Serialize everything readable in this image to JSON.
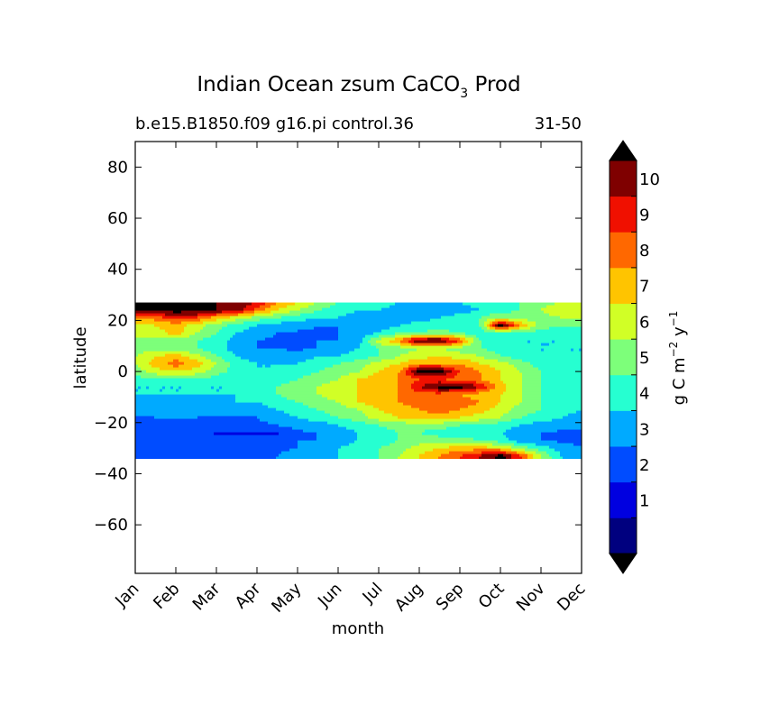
{
  "chart_data": {
    "type": "heatmap",
    "subtype": "filled-contour",
    "title_main": "Indian Ocean zsum CaCO",
    "title_sub": "3",
    "title_suffix": " Prod",
    "subtitle_left": "b.e15.B1850.f09 g16.pi control.36",
    "subtitle_right": "31-50",
    "xlabel": "month",
    "ylabel": "latitude",
    "x_tick_labels": [
      "Jan",
      "Feb",
      "Mar",
      "Apr",
      "May",
      "Jun",
      "Jul",
      "Aug",
      "Sep",
      "Oct",
      "Nov",
      "Dec"
    ],
    "x_range": [
      1,
      12
    ],
    "y_tick_values": [
      80,
      60,
      40,
      20,
      0,
      -20,
      -40,
      -60
    ],
    "y_tick_labels": [
      "80",
      "60",
      "40",
      "20",
      "0",
      "−20",
      "−40",
      "−60"
    ],
    "y_range": [
      -79,
      90
    ],
    "data_lat_range": [
      -34,
      27
    ],
    "grid": false,
    "colorbar": {
      "levels": [
        0,
        1,
        2,
        3,
        4,
        5,
        6,
        7,
        8,
        9,
        10,
        11
      ],
      "tick_labels": [
        "1",
        "2",
        "3",
        "4",
        "5",
        "6",
        "7",
        "8",
        "9",
        "10"
      ],
      "tick_values": [
        1,
        2,
        3,
        4,
        5,
        6,
        7,
        8,
        9,
        10
      ],
      "colors": [
        "#00007f",
        "#0000e0",
        "#004cff",
        "#00aaff",
        "#26ffd1",
        "#7dff7a",
        "#d1ff26",
        "#ffc400",
        "#ff6800",
        "#f01000",
        "#7f0000"
      ],
      "over_color": "#000000",
      "under_color": "#000000",
      "extend": "both",
      "label_main": "g C m",
      "label_exp1": "−2",
      "label_mid": " y",
      "label_exp2": "−1"
    },
    "field": {
      "months": [
        1,
        1.5,
        2,
        2.5,
        3,
        3.5,
        4,
        4.5,
        5,
        5.5,
        6,
        6.5,
        7,
        7.5,
        8,
        8.5,
        9,
        9.5,
        10,
        10.5,
        11,
        11.5,
        12
      ],
      "lats": [
        27,
        24,
        21,
        18,
        15,
        12,
        9,
        6,
        3,
        0,
        -3,
        -6,
        -9,
        -12,
        -15,
        -18,
        -21,
        -24,
        -27,
        -30,
        -33,
        -34
      ],
      "values": [
        [
          11.5,
          11.5,
          11,
          11,
          11,
          11,
          10,
          8,
          7,
          6,
          5,
          4.5,
          4.5,
          4,
          4,
          4,
          4,
          4.5,
          4.5,
          5,
          5.5,
          6,
          6.5
        ],
        [
          11.5,
          11.5,
          11.5,
          11.5,
          11,
          10.5,
          8.5,
          7,
          6,
          5,
          4.5,
          4,
          4,
          3.5,
          3.5,
          3.5,
          3.5,
          4,
          4.5,
          5,
          6,
          7,
          7
        ],
        [
          8,
          8.5,
          9.5,
          9,
          7.5,
          6.5,
          5.5,
          5,
          4.5,
          4,
          4,
          3.5,
          3.5,
          3.5,
          3.5,
          4,
          4.5,
          5,
          6,
          5.5,
          5.5,
          6,
          6
        ],
        [
          6.5,
          7,
          7.5,
          6.5,
          5.5,
          4.5,
          4,
          3.5,
          3.5,
          3,
          3,
          3,
          3.5,
          4,
          4.5,
          4.5,
          4,
          5,
          11.5,
          8,
          5.5,
          5,
          5
        ],
        [
          6.5,
          6.5,
          7.5,
          6,
          5,
          4,
          3.5,
          3,
          2.8,
          2.8,
          3,
          3.5,
          4,
          5,
          5,
          5.5,
          5,
          4.5,
          4.5,
          4.5,
          4.5,
          4.5,
          4.5
        ],
        [
          5.5,
          5.5,
          5.5,
          5,
          4.5,
          3.5,
          3,
          2.8,
          2.8,
          3,
          3,
          3.5,
          6.5,
          8,
          11.5,
          11.5,
          9,
          5,
          4.5,
          4,
          4,
          4,
          4.5
        ],
        [
          5.5,
          5.5,
          5.5,
          5,
          4.5,
          3.5,
          3,
          3,
          2.8,
          3,
          3.5,
          4,
          5,
          5.5,
          6,
          6,
          5.5,
          5,
          4.5,
          4,
          4,
          4,
          4
        ],
        [
          6,
          7,
          7.5,
          6.5,
          5,
          4,
          3.5,
          3.5,
          3.5,
          4,
          4,
          4.5,
          5,
          6,
          6.5,
          7,
          6.5,
          6,
          5,
          4.5,
          4,
          4,
          4
        ],
        [
          6,
          7.5,
          8.5,
          7.5,
          6,
          4.5,
          4,
          4,
          4,
          4.5,
          5,
          5.5,
          6.5,
          7,
          8,
          8,
          8,
          7,
          6.5,
          5.5,
          4.5,
          4.5,
          4
        ],
        [
          5.5,
          6.5,
          7,
          6.5,
          5.5,
          4.5,
          4,
          4,
          4.5,
          5,
          5.5,
          6,
          7,
          8,
          11.5,
          11.5,
          9,
          8,
          7,
          6,
          5,
          4.5,
          4
        ],
        [
          4.5,
          5,
          5,
          5,
          4.5,
          4,
          4,
          4.5,
          5,
          5.5,
          6,
          7,
          7.5,
          8,
          9,
          9,
          8.5,
          8,
          7,
          6,
          5,
          4.5,
          4
        ],
        [
          4,
          4,
          4,
          4,
          4,
          4,
          4.5,
          5,
          5.5,
          6,
          6.5,
          7,
          7.5,
          8,
          10,
          11.5,
          11.5,
          10,
          7.5,
          6,
          5,
          4.5,
          4
        ],
        [
          4,
          4,
          4,
          4,
          4,
          4,
          4.5,
          5,
          5.5,
          6,
          6.5,
          7,
          7.5,
          8,
          8.5,
          8.5,
          8,
          7.5,
          7,
          6,
          5,
          4.5,
          4
        ],
        [
          3.5,
          3.5,
          3.5,
          3.5,
          3.5,
          4,
          4,
          4.5,
          5,
          5.5,
          6,
          7,
          7.5,
          8,
          8.5,
          8.5,
          8.5,
          8,
          7,
          6,
          5,
          4.5,
          4
        ],
        [
          3.5,
          3.5,
          3.5,
          3.5,
          3.5,
          3.5,
          3.5,
          4,
          4.5,
          5,
          5.5,
          6,
          7,
          7.5,
          8,
          8.5,
          8,
          7.5,
          6.5,
          5.5,
          5,
          4.5,
          4
        ],
        [
          2.8,
          3,
          3,
          3,
          2.8,
          2.8,
          3,
          3.5,
          4,
          4.5,
          5,
          5.5,
          6.5,
          7,
          7.5,
          7.5,
          7,
          6.5,
          6,
          5,
          4.5,
          4,
          3.5
        ],
        [
          2.8,
          2.8,
          2.8,
          2.8,
          2.8,
          2.8,
          2.8,
          3,
          3.5,
          3.5,
          4,
          4.5,
          5,
          5.5,
          5.5,
          5.5,
          5,
          5,
          4.5,
          4,
          3.5,
          3.5,
          3.5
        ],
        [
          2.8,
          2.8,
          2.8,
          2.8,
          1.8,
          1.8,
          1.8,
          1.8,
          2.8,
          3,
          3.5,
          4,
          4.5,
          5,
          5,
          4.5,
          4.5,
          4,
          4,
          3.5,
          3,
          2.8,
          2.8
        ],
        [
          2.8,
          2.8,
          2.8,
          2.8,
          2.8,
          2.8,
          2.8,
          2.8,
          3,
          3,
          3.5,
          4,
          4.5,
          5,
          5.5,
          5.5,
          5.5,
          5,
          4.5,
          3.5,
          3,
          2.8,
          2.8
        ],
        [
          2.8,
          2.8,
          2.8,
          2.8,
          2.8,
          2.8,
          2.8,
          2.8,
          3,
          3.5,
          4,
          4.5,
          5,
          5.5,
          6.5,
          7,
          7.5,
          7.5,
          7,
          5.5,
          4.5,
          3.5,
          3
        ],
        [
          2.8,
          2.8,
          2.8,
          2.8,
          2.8,
          2.8,
          2.8,
          3,
          3.5,
          3.5,
          4,
          4.5,
          5,
          6,
          7,
          8,
          9,
          10,
          11.5,
          9,
          6,
          4,
          3
        ],
        [
          2.8,
          2.8,
          2.8,
          2.8,
          2.8,
          2.8,
          2.8,
          3,
          3.5,
          3.5,
          4,
          4.5,
          5,
          6,
          7,
          8,
          9,
          10,
          11.5,
          9,
          6,
          4,
          3
        ]
      ]
    }
  }
}
